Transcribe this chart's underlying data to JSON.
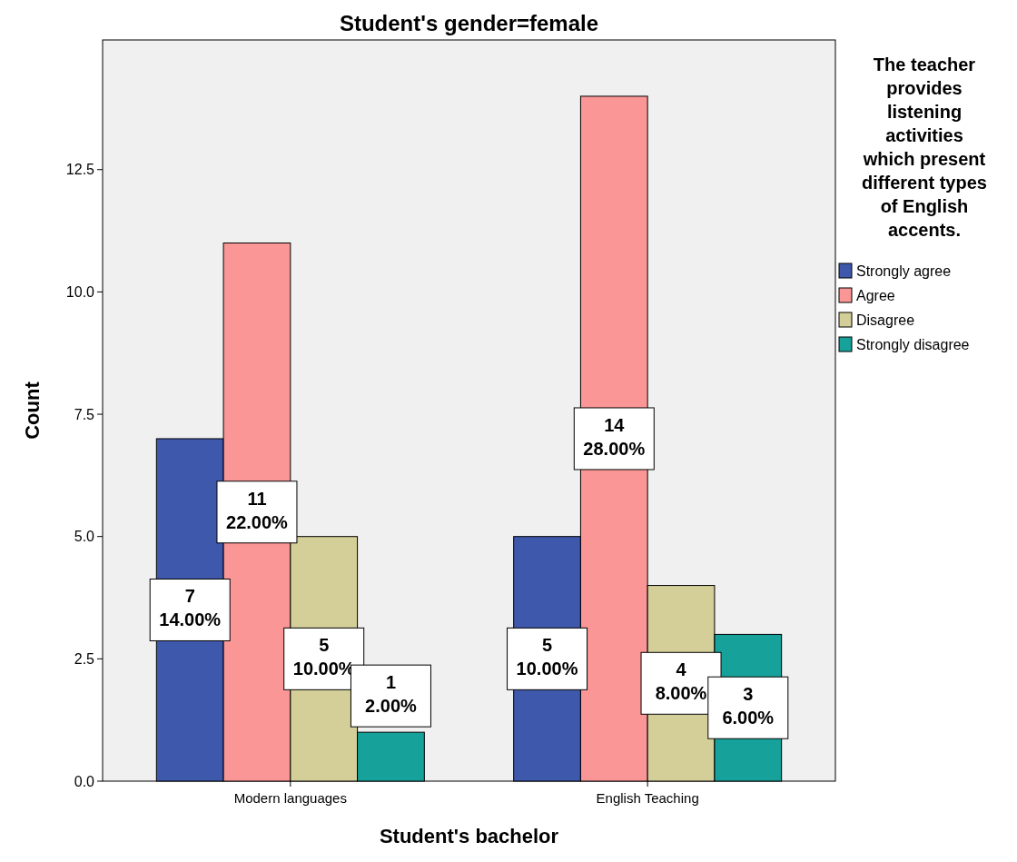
{
  "chart_data": {
    "type": "bar",
    "title": "Student's gender=female",
    "xlabel": "Student's bachelor",
    "ylabel": "Count",
    "legend_title": "The teacher provides listening activities which present different types of English accents.",
    "categories": [
      "Modern languages",
      "English Teaching"
    ],
    "series": [
      {
        "name": "Strongly agree",
        "color": "#3e58ac",
        "values": [
          7,
          5
        ],
        "value_labels": [
          "7\n14.00%",
          "5\n10.00%"
        ]
      },
      {
        "name": "Agree",
        "color": "#fa9696",
        "values": [
          11,
          14
        ],
        "value_labels": [
          "11\n22.00%",
          "14\n28.00%"
        ]
      },
      {
        "name": "Disagree",
        "color": "#d4ce98",
        "values": [
          5,
          4
        ],
        "value_labels": [
          "5\n10.00%",
          "4\n8.00%"
        ]
      },
      {
        "name": "Strongly disagree",
        "color": "#16a19a",
        "values": [
          1,
          3
        ],
        "value_labels": [
          "1\n2.00%",
          "3\n6.00%"
        ]
      }
    ],
    "ylim": [
      0,
      15.15
    ],
    "yticks": [
      {
        "value": 0,
        "label": "0.0"
      },
      {
        "value": 2.5,
        "label": "2.5"
      },
      {
        "value": 5,
        "label": "5.0"
      },
      {
        "value": 7.5,
        "label": "7.5"
      },
      {
        "value": 10,
        "label": "10.0"
      },
      {
        "value": 12.5,
        "label": "12.5"
      }
    ],
    "grid": false,
    "legend": "right"
  }
}
